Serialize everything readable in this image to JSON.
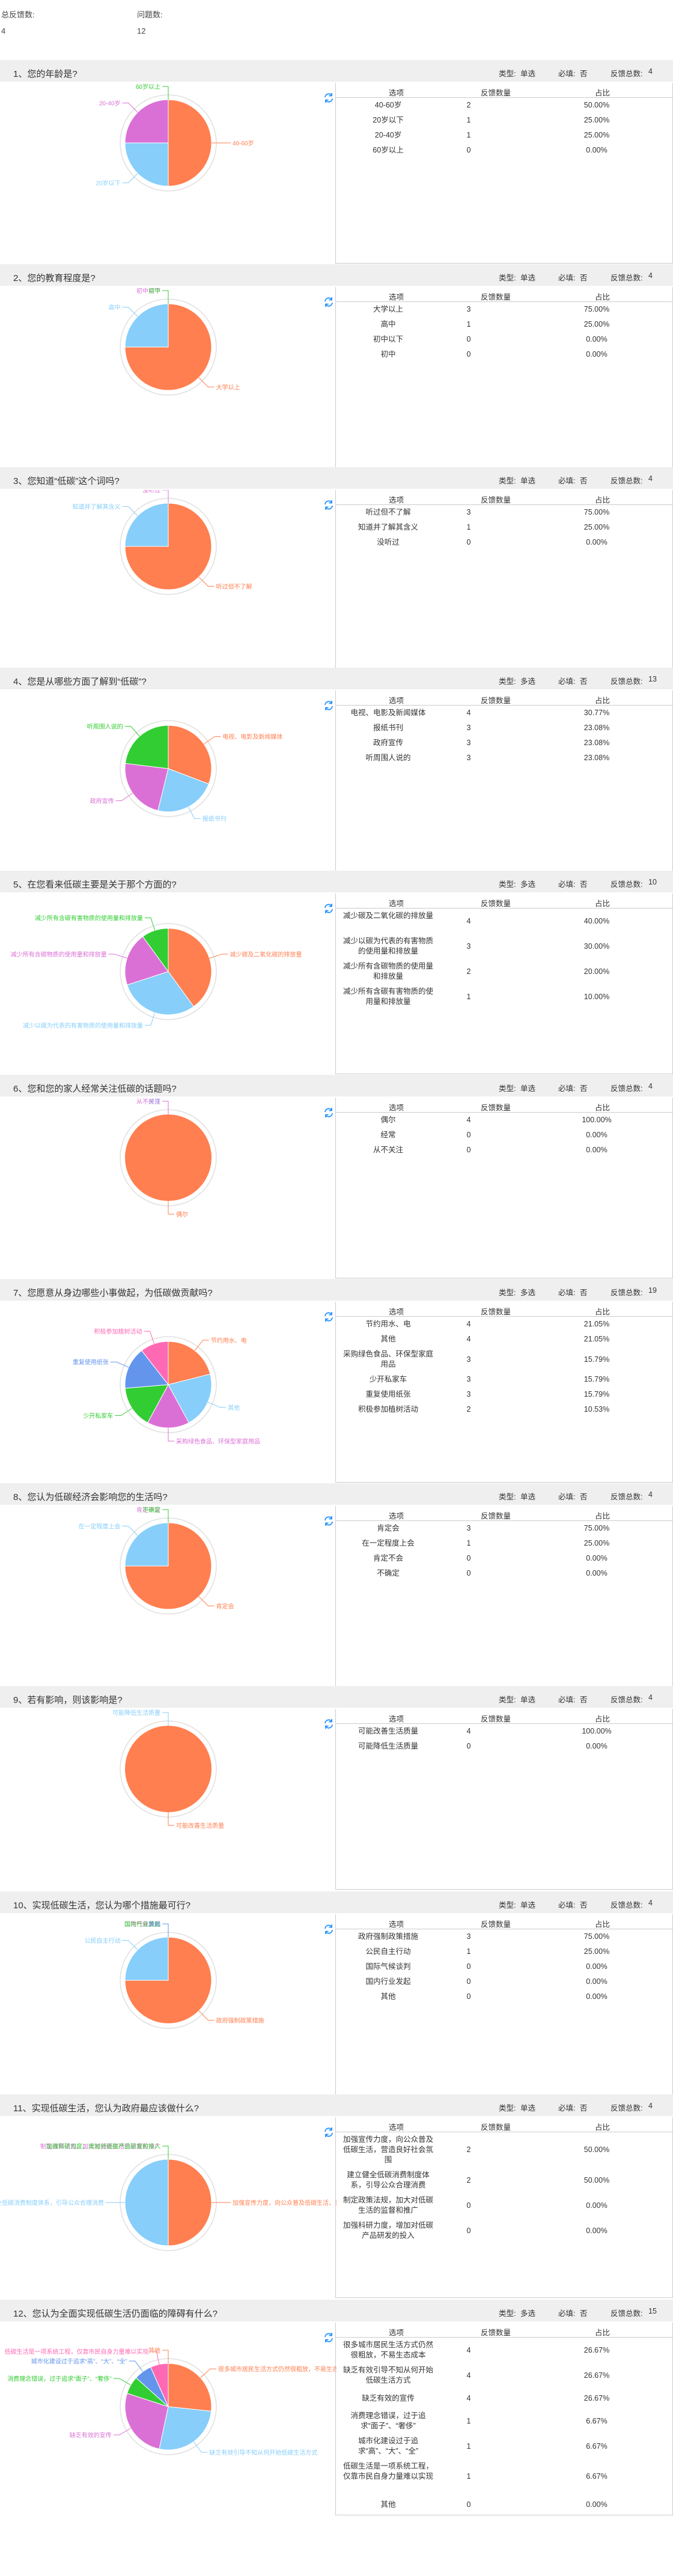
{
  "summary": {
    "total_label": "总反馈数:",
    "total_value": "4",
    "questions_label": "问题数:",
    "questions_value": "12"
  },
  "headers": {
    "option": "选项",
    "count": "反馈数量",
    "percent": "占比"
  },
  "meta_labels": {
    "type": "类型:",
    "required": "必填:",
    "feedback_total": "反馈总数:"
  },
  "colors": {
    "orange": "#ff7f50",
    "blue": "#87cefa",
    "purple": "#da70d6",
    "green": "#32cd32",
    "cornflower": "#6495ed",
    "pink": "#ff69b4"
  },
  "questions": [
    {
      "title": "1、您的年龄是?",
      "type": "单选",
      "required": "否",
      "total": "4",
      "rows": [
        [
          "40-60岁",
          "2",
          "50.00%"
        ],
        [
          "20岁以下",
          "1",
          "25.00%"
        ],
        [
          "20-40岁",
          "1",
          "25.00%"
        ],
        [
          "60岁以上",
          "0",
          "0.00%"
        ]
      ],
      "chart_data": {
        "type": "pie",
        "categories": [
          "40-60岁",
          "20岁以下",
          "20-40岁",
          "60岁以上"
        ],
        "values": [
          2,
          1,
          1,
          0
        ]
      }
    },
    {
      "title": "2、您的教育程度是?",
      "type": "单选",
      "required": "否",
      "total": "4",
      "rows": [
        [
          "大学以上",
          "3",
          "75.00%"
        ],
        [
          "高中",
          "1",
          "25.00%"
        ],
        [
          "初中以下",
          "0",
          "0.00%"
        ],
        [
          "初中",
          "0",
          "0.00%"
        ]
      ],
      "chart_data": {
        "type": "pie",
        "categories": [
          "大学以上",
          "高中",
          "初中以下",
          "初中"
        ],
        "values": [
          3,
          1,
          0,
          0
        ]
      }
    },
    {
      "title": "3、您知道“低碳”这个词吗?",
      "type": "单选",
      "required": "否",
      "total": "4",
      "rows": [
        [
          "听过但不了解",
          "3",
          "75.00%"
        ],
        [
          "知道并了解其含义",
          "1",
          "25.00%"
        ],
        [
          "没听过",
          "0",
          "0.00%"
        ]
      ],
      "chart_data": {
        "type": "pie",
        "categories": [
          "听过但不了解",
          "知道并了解其含义",
          "没听过"
        ],
        "values": [
          3,
          1,
          0
        ]
      }
    },
    {
      "title": "4、您是从哪些方面了解到“低碳”?",
      "type": "多选",
      "required": "否",
      "total": "13",
      "rows": [
        [
          "电视、电影及新闻媒体",
          "4",
          "30.77%"
        ],
        [
          "报纸书刊",
          "3",
          "23.08%"
        ],
        [
          "政府宣传",
          "3",
          "23.08%"
        ],
        [
          "听周围人说的",
          "3",
          "23.08%"
        ]
      ],
      "chart_data": {
        "type": "pie",
        "categories": [
          "电视、电影及新闻媒体",
          "报纸书刊",
          "政府宣传",
          "听周围人说的"
        ],
        "values": [
          4,
          3,
          3,
          3
        ]
      }
    },
    {
      "title": "5、在您看来低碳主要是关于那个方面的?",
      "type": "多选",
      "required": "否",
      "total": "10",
      "rows": [
        [
          "减少碳及二氧化碳的排放量",
          "4",
          "40.00%"
        ],
        [
          "减少以碳为代表的有害物质的使用量和排放量",
          "3",
          "30.00%"
        ],
        [
          "减少所有含碳物质的使用量和排放量",
          "2",
          "20.00%"
        ],
        [
          "减少所有含碳有害物质的使用量和排放量",
          "1",
          "10.00%"
        ]
      ],
      "chart_data": {
        "type": "pie",
        "categories": [
          "减少碳及二氧化碳的排放量",
          "减少以碳为代表的有害物质的使用量和排放量",
          "减少所有含碳物质的使用量和排放量",
          "减少所有含碳有害物质的使用量和排放量"
        ],
        "values": [
          4,
          3,
          2,
          1
        ]
      }
    },
    {
      "title": "6、您和您的家人经常关注低碳的话题吗?",
      "type": "单选",
      "required": "否",
      "total": "4",
      "rows": [
        [
          "偶尔",
          "4",
          "100.00%"
        ],
        [
          "经常",
          "0",
          "0.00%"
        ],
        [
          "从不关注",
          "0",
          "0.00%"
        ]
      ],
      "chart_data": {
        "type": "pie",
        "categories": [
          "偶尔",
          "经常",
          "从不关注"
        ],
        "values": [
          4,
          0,
          0
        ]
      }
    },
    {
      "title": "7、您愿意从身边哪些小事做起，为低碳做贡献吗?",
      "type": "多选",
      "required": "否",
      "total": "19",
      "rows": [
        [
          "节约用水、电",
          "4",
          "21.05%"
        ],
        [
          "其他",
          "4",
          "21.05%"
        ],
        [
          "采购绿色食品、环保型家庭用品",
          "3",
          "15.79%"
        ],
        [
          "少开私家车",
          "3",
          "15.79%"
        ],
        [
          "重复使用纸张",
          "3",
          "15.79%"
        ],
        [
          "积极参加植树活动",
          "2",
          "10.53%"
        ]
      ],
      "chart_data": {
        "type": "pie",
        "categories": [
          "节约用水、电",
          "其他",
          "采购绿色食品、环保型家庭用品",
          "少开私家车",
          "重复使用纸张",
          "积极参加植树活动"
        ],
        "values": [
          4,
          4,
          3,
          3,
          3,
          2
        ]
      }
    },
    {
      "title": "8、您认为低碳经济会影响您的生活吗?",
      "type": "单选",
      "required": "否",
      "total": "4",
      "rows": [
        [
          "肯定会",
          "3",
          "75.00%"
        ],
        [
          "在一定程度上会",
          "1",
          "25.00%"
        ],
        [
          "肯定不会",
          "0",
          "0.00%"
        ],
        [
          "不确定",
          "0",
          "0.00%"
        ]
      ],
      "chart_data": {
        "type": "pie",
        "categories": [
          "肯定会",
          "在一定程度上会",
          "肯定不会",
          "不确定"
        ],
        "values": [
          3,
          1,
          0,
          0
        ]
      }
    },
    {
      "title": "9、若有影响，则该影响是?",
      "type": "单选",
      "required": "否",
      "total": "4",
      "rows": [
        [
          "可能改善生活质量",
          "4",
          "100.00%"
        ],
        [
          "可能降低生活质量",
          "0",
          "0.00%"
        ]
      ],
      "chart_data": {
        "type": "pie",
        "categories": [
          "可能改善生活质量",
          "可能降低生活质量"
        ],
        "values": [
          4,
          0
        ]
      }
    },
    {
      "title": "10、实现低碳生活，您认为哪个措施最可行?",
      "type": "单选",
      "required": "否",
      "total": "4",
      "rows": [
        [
          "政府强制政策措施",
          "3",
          "75.00%"
        ],
        [
          "公民自主行动",
          "1",
          "25.00%"
        ],
        [
          "国际气候谈判",
          "0",
          "0.00%"
        ],
        [
          "国内行业发起",
          "0",
          "0.00%"
        ],
        [
          "其他",
          "0",
          "0.00%"
        ]
      ],
      "chart_data": {
        "type": "pie",
        "categories": [
          "政府强制政策措施",
          "公民自主行动",
          "国际气候谈判",
          "国内行业发起",
          "其他"
        ],
        "values": [
          3,
          1,
          0,
          0,
          0
        ]
      }
    },
    {
      "title": "11、实现低碳生活，您认为政府最应该做什么?",
      "type": "单选",
      "required": "否",
      "total": "4",
      "rows": [
        [
          "加强宣传力度，向公众普及低碳生活，营造良好社会氛围",
          "2",
          "50.00%"
        ],
        [
          "建立健全低碳消费制度体系，引导公众合理消费",
          "2",
          "50.00%"
        ],
        [
          "制定政策法规，加大对低碳生活的监督和推广",
          "0",
          "0.00%"
        ],
        [
          "加强科研力度，增加对低碳产品研发的投入",
          "0",
          "0.00%"
        ]
      ],
      "chart_data": {
        "type": "pie",
        "categories": [
          "加强宣传力度，向公众普及低碳生活，营造良好社会氛围",
          "建立健全低碳消费制度体系，引导公众合理消费",
          "制定政策法规，加大对低碳生活的监督和推广",
          "加强科研力度，增加对低碳产品研发的投入"
        ],
        "values": [
          2,
          2,
          0,
          0
        ]
      }
    },
    {
      "title": "12、您认为全面实现低碳生活仍面临的障碍有什么?",
      "type": "多选",
      "required": "否",
      "total": "15",
      "rows": [
        [
          "很多城市居民生活方式仍然很粗放，不易生态成本",
          "4",
          "26.67%"
        ],
        [
          "缺乏有效引导不知从何开始低碳生活方式",
          "4",
          "26.67%"
        ],
        [
          "缺乏有效的宣传",
          "4",
          "26.67%"
        ],
        [
          "消费理念错误，过于追求“面子”、“奢侈”",
          "1",
          "6.67%"
        ],
        [
          "城市化建设过于追求“高”、“大”、“全”",
          "1",
          "6.67%"
        ],
        [
          "低碳生活是一项系统工程，仅靠市民自身力量难以实现",
          "1",
          "6.67%"
        ],
        [
          "其他",
          "0",
          "0.00%"
        ]
      ],
      "chart_data": {
        "type": "pie",
        "categories": [
          "很多城市居民生活方式仍然很粗放，不易生态成本",
          "缺乏有效引导不知从何开始低碳生活方式",
          "缺乏有效的宣传",
          "消费理念错误，过于追求“面子”、“奢侈”",
          "城市化建设过于追求“高”、“大”、“全”",
          "低碳生活是一项系统工程，仅靠市民自身力量难以实现",
          "其他"
        ],
        "values": [
          4,
          4,
          4,
          1,
          1,
          1,
          0
        ]
      }
    }
  ]
}
